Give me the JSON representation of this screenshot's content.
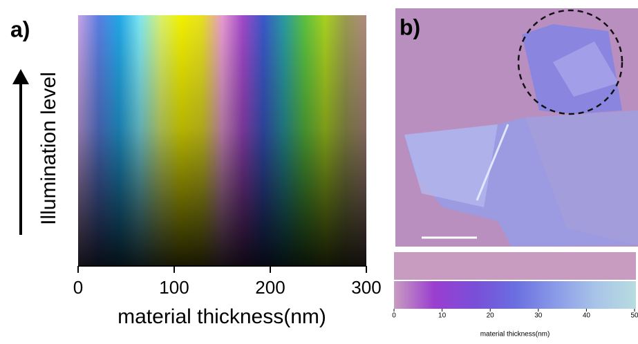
{
  "chart_data": [
    {
      "type": "colormap",
      "label": "a)",
      "ylabel": "Illumination level",
      "xlabel": "material thickness(nm)",
      "xlim": [
        0,
        300
      ],
      "xticks": [
        0,
        100,
        200,
        300
      ],
      "colors": [
        "#c7a3e6",
        "#5a7ee0",
        "#22a6e6",
        "#7fe6f0",
        "#d8f070",
        "#f2f000",
        "#e6e020",
        "#e59ad0",
        "#a048c8",
        "#3a58c8",
        "#2a9aa0",
        "#5ac040",
        "#a8d020",
        "#9a9a50",
        "#b08a80"
      ]
    },
    {
      "type": "colorbar",
      "label": "b)",
      "xlabel": "material thickness(nm)",
      "xlim": [
        0,
        50
      ],
      "xticks": [
        0,
        10,
        20,
        30,
        40,
        50
      ],
      "colors": [
        "#c89cc0",
        "#9a3ed0",
        "#7a4ed8",
        "#6a6ee0",
        "#8a9ae8",
        "#a8c4e8",
        "#b8dce0"
      ]
    }
  ]
}
